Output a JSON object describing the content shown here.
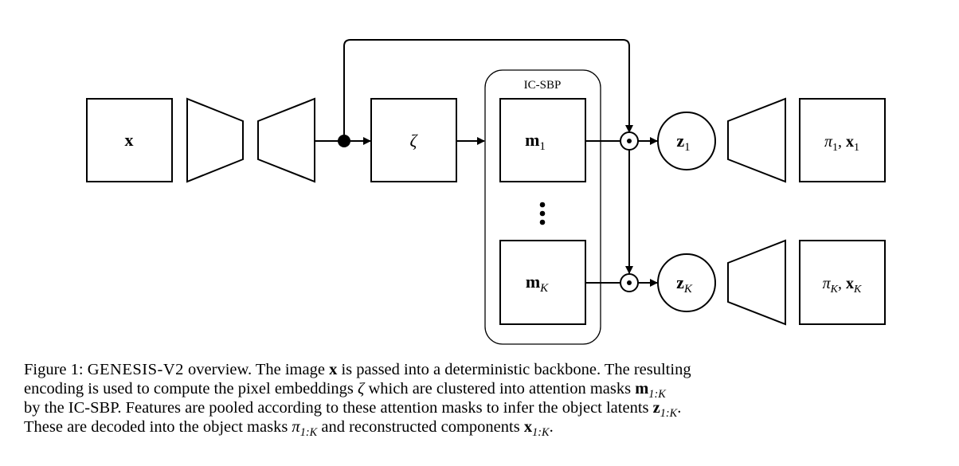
{
  "diagram": {
    "input_label": "x",
    "zeta_label": "ζ",
    "group_title": "IC-SBP",
    "mask_first": {
      "base": "m",
      "sub": "1"
    },
    "mask_last": {
      "base": "m",
      "sub": "K"
    },
    "dots_label": "⋮",
    "odot_symbol": "⊙",
    "latent_first": {
      "base": "z",
      "sub": "1"
    },
    "latent_last": {
      "base": "z",
      "sub": "K"
    },
    "output_first": {
      "pi": "π",
      "pi_sub": "1",
      "sep": ", ",
      "x": "x",
      "x_sub": "1"
    },
    "output_last": {
      "pi": "π",
      "pi_sub": "K",
      "sep": ", ",
      "x": "x",
      "x_sub": "K"
    }
  },
  "caption": {
    "line1_a": "Figure 1: ",
    "line1_sc": "GENESIS-V2",
    "line1_b": " overview. The image ",
    "line1_x": "x",
    "line1_c": " is passed into a deterministic backbone. The resulting",
    "line2_a": "encoding is used to compute the pixel embeddings ",
    "line2_zeta": "ζ",
    "line2_b": " which are clustered into attention masks ",
    "line2_m": "m",
    "line2_m_sub": "1:K",
    "line3_a": "by the IC-SBP. Features are pooled according to these attention masks to infer the object latents ",
    "line3_z": "z",
    "line3_z_sub": "1:K",
    "line3_b": ".",
    "line4_a": "These are decoded into the object masks ",
    "line4_pi": "π",
    "line4_pi_sub": "1:K",
    "line4_b": " and reconstructed components ",
    "line4_x": "x",
    "line4_x_sub": "1:K",
    "line4_c": "."
  }
}
